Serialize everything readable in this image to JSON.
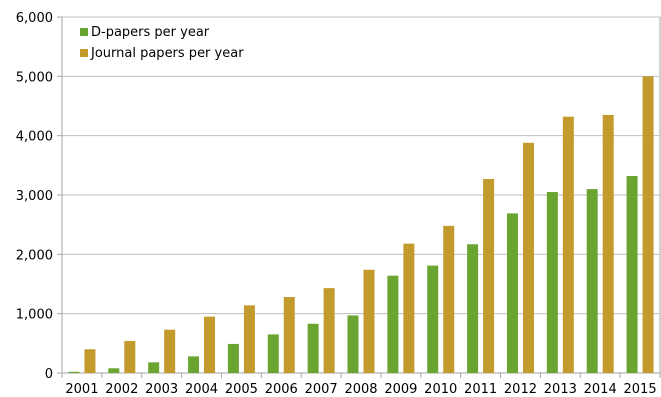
{
  "chart_data": {
    "type": "bar",
    "title": "",
    "xlabel": "",
    "ylabel": "",
    "categories": [
      "2001",
      "2002",
      "2003",
      "2004",
      "2005",
      "2006",
      "2007",
      "2008",
      "2009",
      "2010",
      "2011",
      "2012",
      "2013",
      "2014",
      "2015"
    ],
    "series": [
      {
        "name": "D-papers per year",
        "color": "#6aa532",
        "values": [
          20,
          80,
          180,
          280,
          490,
          650,
          830,
          970,
          1640,
          1810,
          2170,
          2690,
          3050,
          3100,
          3320
        ]
      },
      {
        "name": "Journal papers per year",
        "color": "#c39a2c",
        "values": [
          400,
          540,
          730,
          950,
          1140,
          1280,
          1430,
          1740,
          2180,
          2480,
          3270,
          3880,
          4320,
          4350,
          5000
        ]
      }
    ],
    "ylim": [
      0,
      6000
    ],
    "yticks": [
      0,
      1000,
      2000,
      3000,
      4000,
      5000,
      6000
    ],
    "ytick_labels": [
      "0",
      "1,000",
      "2,000",
      "3,000",
      "4,000",
      "5,000",
      "6,000"
    ],
    "grid": true,
    "legend_position": "top-left"
  }
}
